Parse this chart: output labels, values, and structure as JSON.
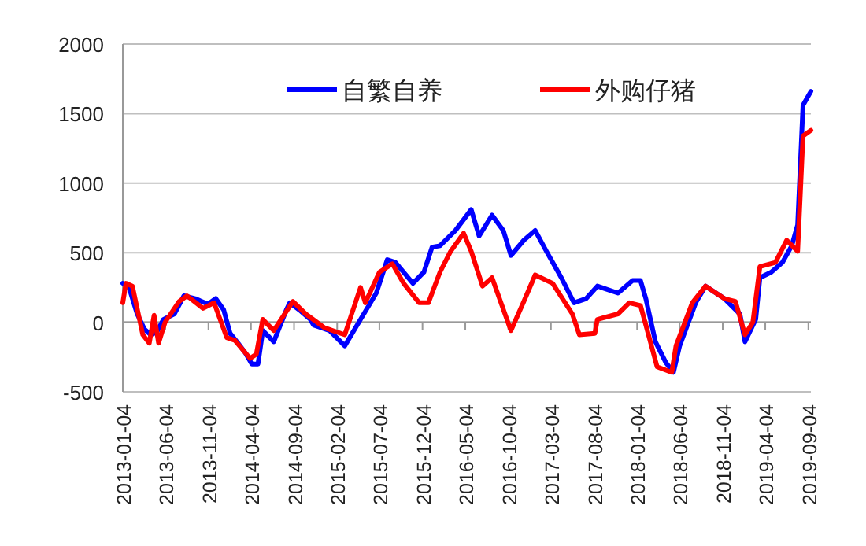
{
  "chart_data": {
    "type": "line",
    "xlim": [
      "2013-01-04",
      "2019-09-13"
    ],
    "xticks": [
      "2013-01-04",
      "2013-06-04",
      "2013-11-04",
      "2014-04-04",
      "2014-09-04",
      "2015-02-04",
      "2015-07-04",
      "2015-12-04",
      "2016-05-04",
      "2016-10-04",
      "2017-03-04",
      "2017-08-04",
      "2018-01-04",
      "2018-06-04",
      "2018-11-04",
      "2019-04-04",
      "2019-09-04"
    ],
    "ylim": [
      -500,
      2000
    ],
    "yticks": [
      -500,
      0,
      500,
      1000,
      1500,
      2000
    ],
    "grid": "y",
    "legend": "top",
    "line_style": "solid",
    "marker": "none",
    "series": [
      {
        "name": "自繁自养",
        "color": "#0000ff",
        "x": [
          "2013-01-04",
          "2013-01-26",
          "2013-02-24",
          "2013-03-22",
          "2013-04-13",
          "2013-05-05",
          "2013-05-28",
          "2013-07-06",
          "2013-08-09",
          "2013-09-18",
          "2013-11-02",
          "2013-11-30",
          "2013-12-28",
          "2014-01-20",
          "2014-02-17",
          "2014-03-15",
          "2014-04-07",
          "2014-04-29",
          "2014-05-16",
          "2014-06-24",
          "2014-08-08",
          "2014-08-20",
          "2014-09-28",
          "2014-11-01",
          "2014-11-12",
          "2015-01-08",
          "2015-03-03",
          "2015-04-28",
          "2015-06-23",
          "2015-08-01",
          "2015-08-30",
          "2015-10-31",
          "2015-12-09",
          "2016-01-07",
          "2016-02-04",
          "2016-03-30",
          "2016-05-25",
          "2016-06-22",
          "2016-08-07",
          "2016-09-16",
          "2016-10-13",
          "2016-11-28",
          "2017-01-07",
          "2017-02-16",
          "2017-04-10",
          "2017-05-25",
          "2017-07-07",
          "2017-08-16",
          "2017-10-28",
          "2017-12-19",
          "2018-01-16",
          "2018-02-04",
          "2018-03-10",
          "2018-04-16",
          "2018-05-13",
          "2018-06-04",
          "2018-07-31",
          "2018-09-04",
          "2018-11-10",
          "2019-01-04",
          "2019-01-22",
          "2019-03-01",
          "2019-03-16",
          "2019-04-25",
          "2019-06-04",
          "2019-07-07",
          "2019-07-28",
          "2019-08-16",
          "2019-09-13"
        ],
        "values": [
          280,
          250,
          60,
          -50,
          -90,
          -70,
          20,
          60,
          190,
          170,
          130,
          170,
          90,
          -80,
          -150,
          -220,
          -300,
          -300,
          -60,
          -140,
          90,
          140,
          80,
          20,
          -20,
          -60,
          -170,
          20,
          210,
          450,
          430,
          280,
          360,
          540,
          550,
          660,
          810,
          620,
          770,
          660,
          480,
          590,
          660,
          510,
          320,
          140,
          170,
          260,
          210,
          300,
          300,
          170,
          -140,
          -290,
          -360,
          -170,
          140,
          260,
          170,
          60,
          -140,
          20,
          320,
          360,
          430,
          550,
          700,
          1560,
          1660
        ]
      },
      {
        "name": "外购仔猪",
        "color": "#ff0000",
        "x": [
          "2013-01-04",
          "2013-01-15",
          "2013-02-07",
          "2013-03-16",
          "2013-04-08",
          "2013-04-25",
          "2013-05-11",
          "2013-06-03",
          "2013-07-23",
          "2013-08-20",
          "2013-10-16",
          "2013-11-24",
          "2014-01-08",
          "2014-02-06",
          "2014-04-01",
          "2014-04-23",
          "2014-05-16",
          "2014-06-24",
          "2014-08-31",
          "2014-10-15",
          "2014-12-21",
          "2015-03-03",
          "2015-04-28",
          "2015-05-15",
          "2015-07-04",
          "2015-08-19",
          "2015-09-28",
          "2015-11-22",
          "2015-12-25",
          "2016-02-04",
          "2016-03-13",
          "2016-04-28",
          "2016-05-25",
          "2016-07-04",
          "2016-08-07",
          "2016-10-13",
          "2016-11-28",
          "2017-01-07",
          "2017-03-10",
          "2017-05-19",
          "2017-06-13",
          "2017-08-07",
          "2017-08-16",
          "2017-10-28",
          "2017-12-07",
          "2018-01-16",
          "2018-02-04",
          "2018-03-16",
          "2018-05-07",
          "2018-05-22",
          "2018-07-19",
          "2018-09-04",
          "2018-11-10",
          "2018-12-19",
          "2019-01-22",
          "2019-02-19",
          "2019-03-16",
          "2019-05-10",
          "2019-06-19",
          "2019-07-28",
          "2019-08-16",
          "2019-09-13"
        ],
        "values": [
          140,
          280,
          260,
          -90,
          -150,
          50,
          -150,
          0,
          150,
          190,
          100,
          140,
          -110,
          -130,
          -260,
          -230,
          20,
          -60,
          150,
          60,
          -40,
          -90,
          250,
          140,
          360,
          420,
          280,
          140,
          140,
          360,
          510,
          640,
          510,
          260,
          320,
          -60,
          150,
          340,
          280,
          60,
          -90,
          -80,
          20,
          60,
          140,
          120,
          -20,
          -320,
          -360,
          -170,
          140,
          260,
          170,
          150,
          -90,
          0,
          400,
          430,
          590,
          510,
          1340,
          1380
        ]
      }
    ]
  }
}
